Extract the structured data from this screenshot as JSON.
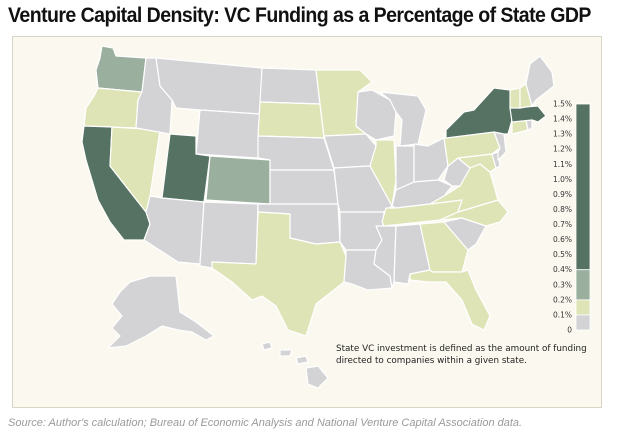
{
  "title": "Venture Capital Density: VC Funding as a Percentage of State GDP",
  "note": "State VC investment is defined as the amount of funding directed to companies within a given state.",
  "source": "Source: Author's calculation; Bureau of Economic Analysis and National Venture Capital Association data.",
  "colors": {
    "panel_bg": "#fbf9ef",
    "tier_none": "#d3d3d5",
    "tier_low": "#dfe4b7",
    "tier_mid": "#9aaf9e",
    "tier_high": "#567263"
  },
  "legend": {
    "ticks": [
      "1.5%",
      "1.4%",
      "1.3%",
      "1.2%",
      "1.1%",
      "1.0%",
      "0.9%",
      "0.8%",
      "0.7%",
      "0.6%",
      "0.5%",
      "0.4%",
      "0.3%",
      "0.2%",
      "0.1%",
      "0"
    ],
    "bands": [
      {
        "tier": "tier_high",
        "from": 0.4,
        "to": 1.5
      },
      {
        "tier": "tier_mid",
        "from": 0.2,
        "to": 0.4
      },
      {
        "tier": "tier_low",
        "from": 0.1,
        "to": 0.2
      },
      {
        "tier": "tier_none",
        "from": 0.0,
        "to": 0.1
      }
    ]
  },
  "state_tiers": {
    "WA": "tier_mid",
    "OR": "tier_low",
    "CA": "tier_high",
    "NV": "tier_low",
    "ID": "tier_none",
    "MT": "tier_none",
    "WY": "tier_none",
    "UT": "tier_high",
    "CO": "tier_mid",
    "AZ": "tier_none",
    "NM": "tier_none",
    "ND": "tier_none",
    "SD": "tier_low",
    "NE": "tier_none",
    "KS": "tier_none",
    "OK": "tier_none",
    "TX": "tier_low",
    "MN": "tier_low",
    "IA": "tier_none",
    "MO": "tier_none",
    "AR": "tier_none",
    "LA": "tier_none",
    "WI": "tier_none",
    "IL": "tier_low",
    "MI": "tier_none",
    "IN": "tier_none",
    "OH": "tier_none",
    "KY": "tier_none",
    "TN": "tier_low",
    "MS": "tier_none",
    "AL": "tier_none",
    "GA": "tier_low",
    "FL": "tier_low",
    "SC": "tier_none",
    "NC": "tier_low",
    "VA": "tier_low",
    "WV": "tier_none",
    "MD": "tier_low",
    "DE": "tier_none",
    "PA": "tier_low",
    "NJ": "tier_none",
    "NY": "tier_high",
    "CT": "tier_low",
    "RI": "tier_none",
    "MA": "tier_high",
    "VT": "tier_low",
    "NH": "tier_low",
    "ME": "tier_none",
    "AK": "tier_none",
    "HI": "tier_none"
  }
}
